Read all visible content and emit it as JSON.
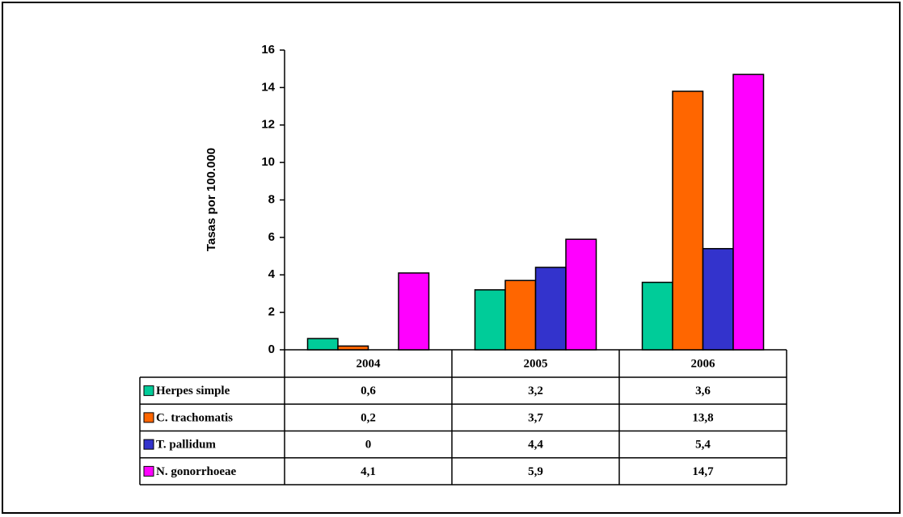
{
  "chart_data": {
    "type": "bar",
    "y_label": "Tasas por 100.000",
    "categories": [
      "2004",
      "2005",
      "2006"
    ],
    "series": [
      {
        "name": "Herpes simple",
        "color": "#00cc99",
        "values": [
          0.6,
          3.2,
          3.6
        ],
        "value_labels": [
          "0,6",
          "3,2",
          "3,6"
        ]
      },
      {
        "name": "C. trachomatis",
        "color": "#ff6600",
        "values": [
          0.2,
          3.7,
          13.8
        ],
        "value_labels": [
          "0,2",
          "3,7",
          "13,8"
        ]
      },
      {
        "name": "T. pallidum",
        "color": "#3333cc",
        "values": [
          0,
          4.4,
          5.4
        ],
        "value_labels": [
          "0",
          "4,4",
          "5,4"
        ]
      },
      {
        "name": "N. gonorrhoeae",
        "color": "#ff00ff",
        "values": [
          4.1,
          5.9,
          14.7
        ],
        "value_labels": [
          "4,1",
          "5,9",
          "14,7"
        ]
      }
    ],
    "ylim": [
      0,
      16
    ],
    "yticks": [
      0,
      2,
      4,
      6,
      8,
      10,
      12,
      14,
      16
    ]
  }
}
